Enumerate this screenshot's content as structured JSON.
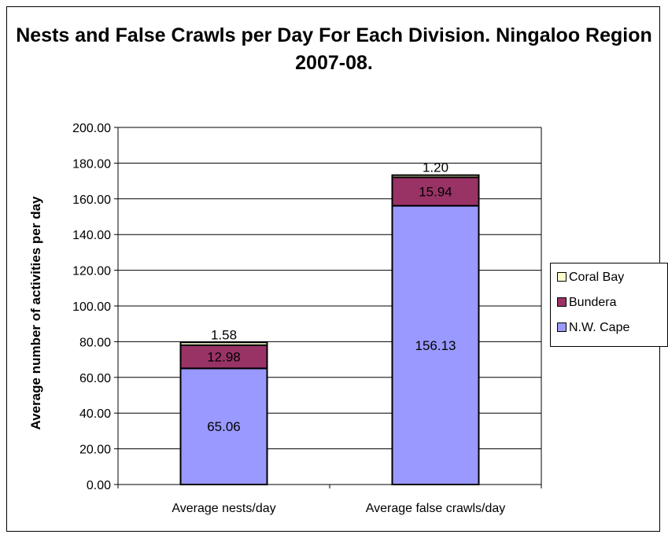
{
  "chart_data": {
    "type": "bar",
    "stacked": true,
    "title": "Nests and False Crawls per Day For Each Division. Ningaloo Region 2007-08.",
    "xlabel": "",
    "ylabel": "Average number of activities per day",
    "categories": [
      "Average nests/day",
      "Average false crawls/day"
    ],
    "series": [
      {
        "name": "N.W. Cape",
        "values": [
          65.06,
          156.13
        ],
        "labels": [
          "65.06",
          "156.13"
        ],
        "color": "#9999ff"
      },
      {
        "name": "Bundera",
        "values": [
          12.98,
          15.94
        ],
        "labels": [
          "12.98",
          "15.94"
        ],
        "color": "#993366"
      },
      {
        "name": "Coral Bay",
        "values": [
          1.58,
          1.2
        ],
        "labels": [
          "1.58",
          "1.20"
        ],
        "color": "#ffffcc"
      }
    ],
    "ylim": [
      0,
      200
    ],
    "yticks": [
      "0.00",
      "20.00",
      "40.00",
      "60.00",
      "80.00",
      "100.00",
      "120.00",
      "140.00",
      "160.00",
      "180.00",
      "200.00"
    ],
    "grid": true,
    "legend_position": "right",
    "legend_order": [
      "Coral Bay",
      "Bundera",
      "N.W. Cape"
    ]
  }
}
